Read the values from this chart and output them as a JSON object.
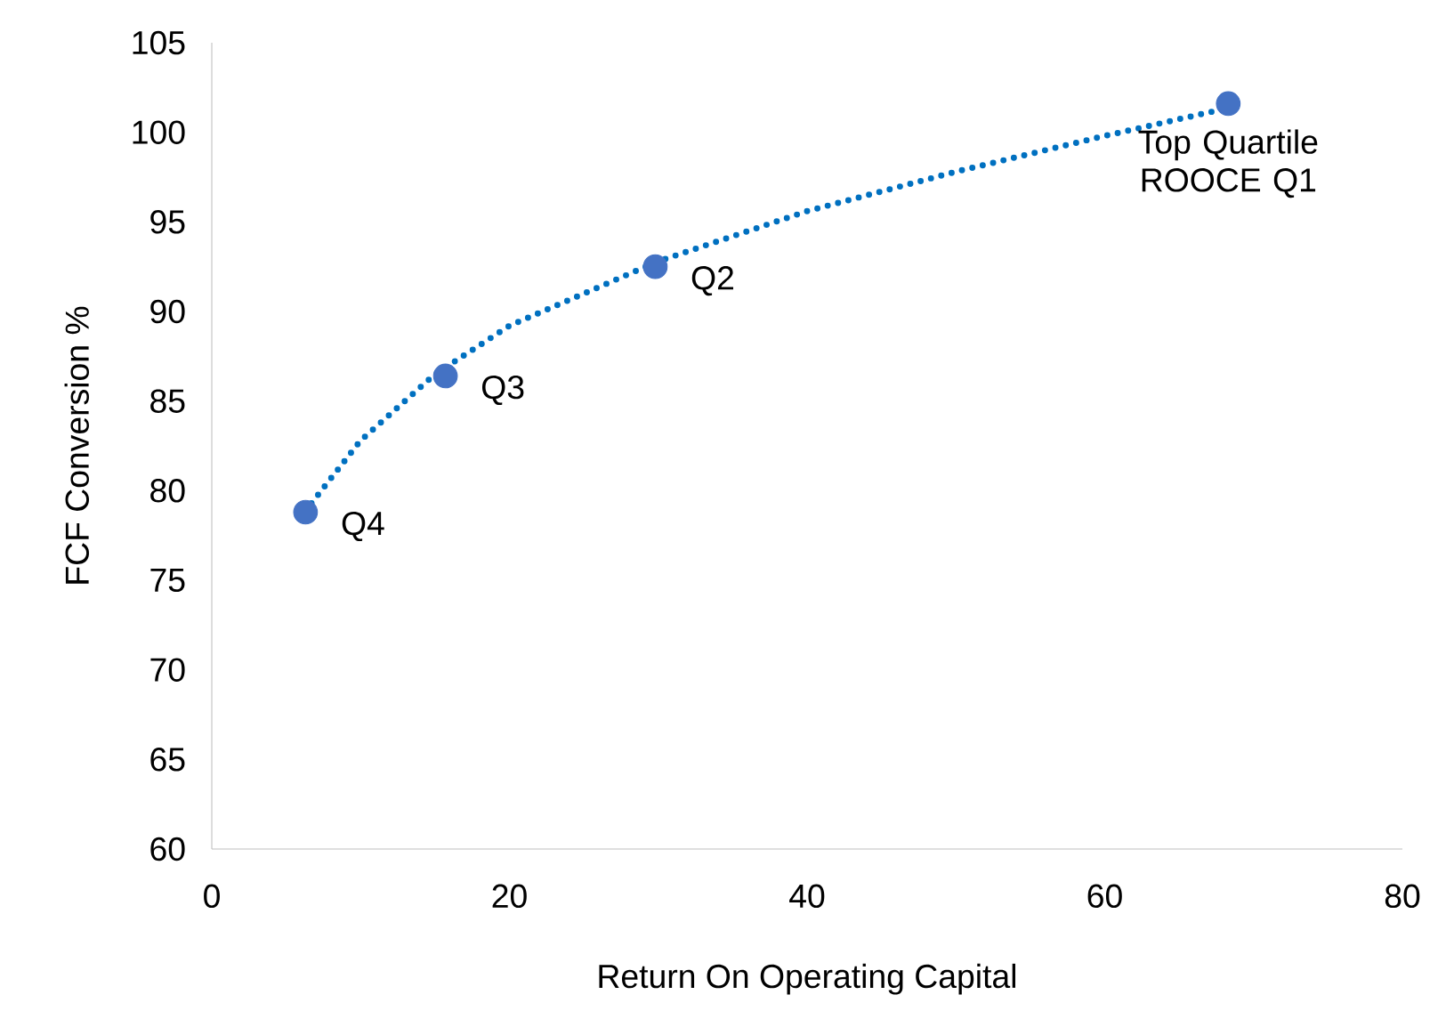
{
  "chart_data": {
    "type": "scatter",
    "xlabel": "Return On Operating Capital",
    "ylabel": "FCF Conversion %",
    "xlim": [
      0,
      80
    ],
    "xticks": [
      0,
      20,
      40,
      60,
      80
    ],
    "ylim": [
      60,
      105
    ],
    "yticks": [
      60,
      65,
      70,
      75,
      80,
      85,
      90,
      95,
      100,
      105
    ],
    "grid": false,
    "x": [
      6.3,
      15.7,
      29.8,
      68.3
    ],
    "series": [
      {
        "color": "#4472c4",
        "marker": "circle",
        "values": [
          78.8,
          86.4,
          92.5,
          101.6
        ]
      },
      {
        "type": "line",
        "color": "#0070c0",
        "line_style": "dotted",
        "marker": "none",
        "x": [
          6.7,
          10,
          15,
          20,
          30,
          40,
          50,
          60,
          68
        ],
        "values": [
          79.3,
          82.8,
          86.5,
          89.2,
          92.8,
          95.6,
          97.8,
          99.8,
          101.3
        ]
      }
    ],
    "annotations": [
      {
        "text": "Q4",
        "x": 6.3,
        "y": 78.8
      },
      {
        "text": "Q3",
        "x": 15.7,
        "y": 86.4
      },
      {
        "text": "Q2",
        "x": 29.8,
        "y": 92.5
      },
      {
        "text": "Top Quartile ROOCE Q1",
        "x": 68.3,
        "y": 101.6
      }
    ]
  }
}
